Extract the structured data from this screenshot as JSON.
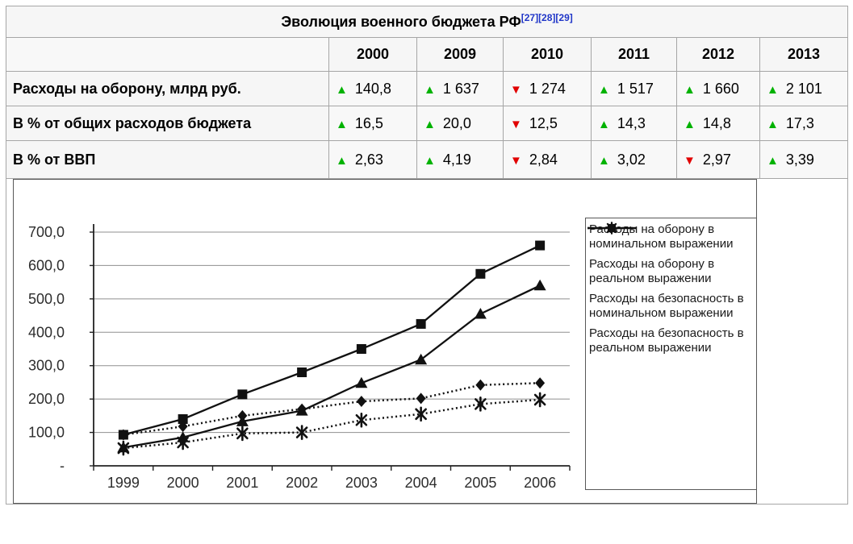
{
  "colors": {
    "up": "#00b200",
    "down": "#e10000",
    "link": "#2036c8"
  },
  "table": {
    "title": "Эволюция военного бюджета РФ",
    "refs": [
      "[27]",
      "[28]",
      "[29]"
    ],
    "col_headers": [
      "2000",
      "2009",
      "2010",
      "2011",
      "2012",
      "2013"
    ],
    "rows": [
      {
        "label": "Расходы на оборону, млрд руб.",
        "cells": [
          {
            "dir": "up",
            "value": "140,8"
          },
          {
            "dir": "up",
            "value": "1 637"
          },
          {
            "dir": "down",
            "value": "1 274"
          },
          {
            "dir": "up",
            "value": "1 517"
          },
          {
            "dir": "up",
            "value": "1 660"
          },
          {
            "dir": "up",
            "value": "2 101"
          }
        ]
      },
      {
        "label": "В % от общих расходов бюджета",
        "cells": [
          {
            "dir": "up",
            "value": "16,5"
          },
          {
            "dir": "up",
            "value": "20,0"
          },
          {
            "dir": "down",
            "value": "12,5"
          },
          {
            "dir": "up",
            "value": "14,3"
          },
          {
            "dir": "up",
            "value": "14,8"
          },
          {
            "dir": "up",
            "value": "17,3"
          }
        ]
      },
      {
        "label": "В % от ВВП",
        "cells": [
          {
            "dir": "up",
            "value": "2,63"
          },
          {
            "dir": "up",
            "value": "4,19"
          },
          {
            "dir": "down",
            "value": "2,84"
          },
          {
            "dir": "up",
            "value": "3,02"
          },
          {
            "dir": "down",
            "value": "2,97"
          },
          {
            "dir": "up",
            "value": "3,39"
          }
        ]
      }
    ]
  },
  "chart_data": {
    "type": "line",
    "x": [
      1999,
      2000,
      2001,
      2002,
      2003,
      2004,
      2005,
      2006
    ],
    "series": [
      {
        "name": "Расходы на оборону в номинальном выражении",
        "marker": "square",
        "line": "solid",
        "values": [
          93,
          140,
          214,
          280,
          350,
          425,
          575,
          660
        ]
      },
      {
        "name": "Расходы на оборону в реальном выражении",
        "marker": "diamond",
        "line": "dotted",
        "values": [
          93,
          118,
          150,
          170,
          193,
          202,
          242,
          248
        ]
      },
      {
        "name": "Расходы на безопасность в номинальном выражении",
        "marker": "triangle",
        "line": "solid",
        "values": [
          55,
          85,
          133,
          165,
          248,
          318,
          455,
          540
        ]
      },
      {
        "name": "Расходы на безопасность в реальном выражении",
        "marker": "asterisk",
        "line": "dotted",
        "values": [
          53,
          70,
          97,
          100,
          137,
          155,
          185,
          198
        ]
      }
    ],
    "title": "",
    "xlabel": "",
    "ylabel": "",
    "ylim": [
      0,
      700
    ],
    "ytick_labels": [
      "-",
      "100,0",
      "200,0",
      "300,0",
      "400,0",
      "500,0",
      "600,0",
      "700,0"
    ],
    "grid": true,
    "legend_position": "right"
  }
}
